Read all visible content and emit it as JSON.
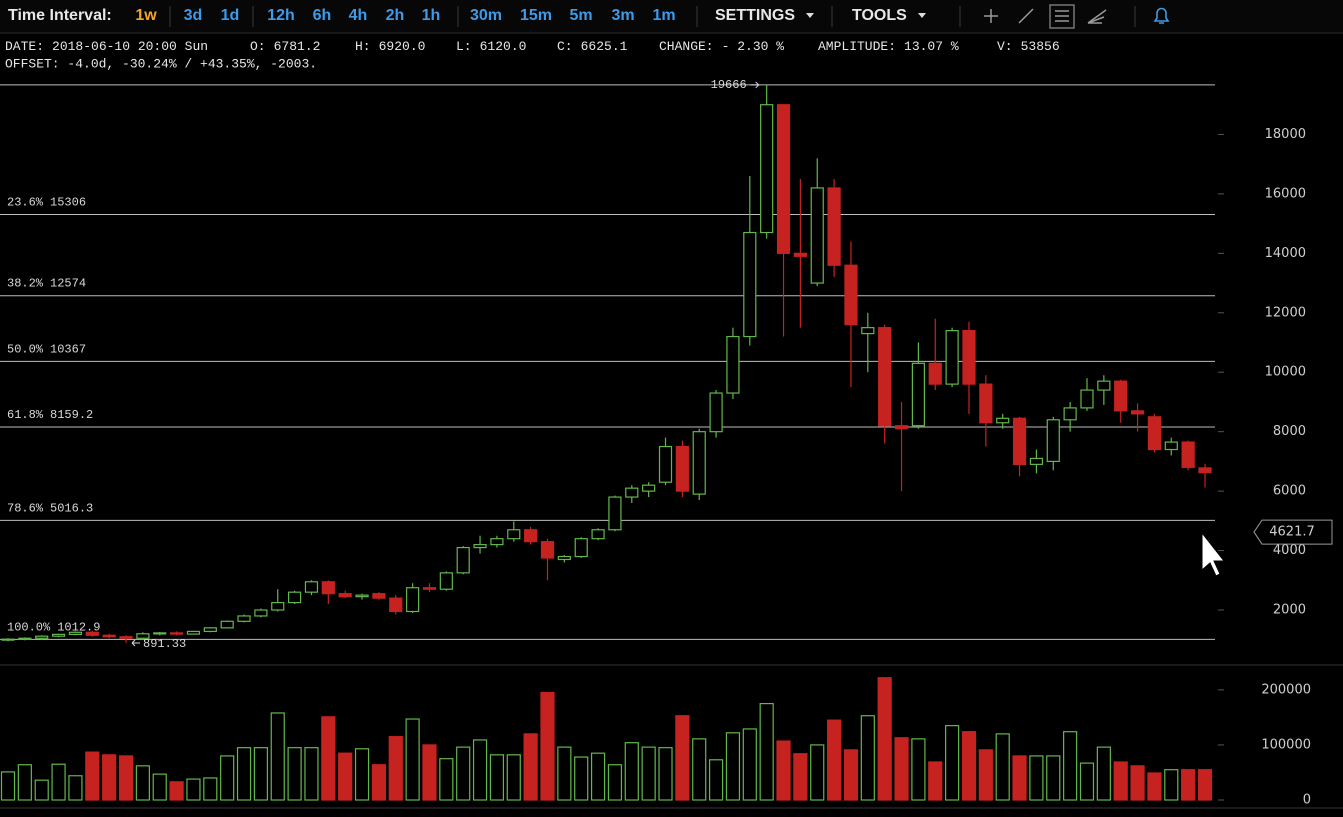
{
  "toolbar": {
    "label": "Time Interval:",
    "intervals": [
      "1w",
      "3d",
      "1d",
      "12h",
      "6h",
      "4h",
      "2h",
      "1h",
      "30m",
      "15m",
      "5m",
      "3m",
      "1m"
    ],
    "menus": [
      "SETTINGS",
      "TOOLS"
    ]
  },
  "info": [
    {
      "label": "DATE:",
      "value": "2018-06-10 20:00 Sun"
    },
    {
      "label": "O:",
      "value": "6781.2"
    },
    {
      "label": "H:",
      "value": "6920.0"
    },
    {
      "label": "L:",
      "value": "6120.0"
    },
    {
      "label": "C:",
      "value": "6625.1"
    },
    {
      "label": "CHANGE:",
      "value": "- 2.30 %"
    },
    {
      "label": "AMPLITUDE:",
      "value": "13.07 %"
    },
    {
      "label": "V:",
      "value": "53856"
    }
  ],
  "offset": "OFFSET: -4.0d, -30.24% / +43.35%, -2003.",
  "chart_data": [
    {
      "type": "candlestick",
      "open": [
        1000,
        1020,
        1050,
        1120,
        1180,
        1250,
        1150,
        1100,
        1050,
        1200,
        1230,
        1190,
        1280,
        1400,
        1620,
        1800,
        2000,
        2250,
        2600,
        2950,
        2550,
        2450,
        2550,
        2400,
        1950,
        2750,
        2700,
        3250,
        4100,
        4200,
        4400,
        4700,
        4300,
        3700,
        3800,
        4400,
        4700,
        5800,
        6000,
        6300,
        7500,
        5900,
        8000,
        9300,
        11200,
        14700,
        19000,
        14000,
        13000,
        16200,
        13600,
        11300,
        11500,
        8200,
        8200,
        10300,
        9600,
        11400,
        9600,
        8300,
        8450,
        6900,
        7000,
        8400,
        8800,
        9400,
        9700,
        8700,
        8500,
        7400,
        7650,
        6781.2
      ],
      "high": [
        1050,
        1080,
        1150,
        1200,
        1280,
        1300,
        1200,
        1150,
        1250,
        1260,
        1280,
        1300,
        1420,
        1650,
        1850,
        2050,
        2700,
        2650,
        3000,
        3000,
        2650,
        2550,
        2600,
        2500,
        2900,
        2900,
        3300,
        4150,
        4500,
        4500,
        4980,
        4800,
        4400,
        3850,
        4450,
        4750,
        5850,
        6200,
        6300,
        7800,
        7700,
        8100,
        9400,
        11500,
        16600,
        19666,
        19000,
        16500,
        17200,
        16500,
        14400,
        12000,
        11600,
        9000,
        11000,
        11800,
        11500,
        11700,
        9900,
        8600,
        8500,
        7400,
        8500,
        9000,
        9800,
        9900,
        9750,
        8950,
        8600,
        7800,
        7700,
        6920
      ],
      "low": [
        950,
        980,
        1000,
        1080,
        1150,
        1100,
        1050,
        891.33,
        1000,
        1150,
        1150,
        1180,
        1250,
        1380,
        1580,
        1750,
        1950,
        2200,
        2500,
        2200,
        2400,
        2350,
        2350,
        1850,
        1900,
        2600,
        2650,
        3200,
        3900,
        4100,
        4300,
        4200,
        3000,
        3600,
        3750,
        4350,
        4650,
        5600,
        5800,
        6200,
        5800,
        5700,
        7800,
        9100,
        10900,
        14500,
        11200,
        11500,
        12900,
        13200,
        9500,
        10000,
        7600,
        6000,
        8100,
        9400,
        9500,
        8600,
        7500,
        8100,
        6500,
        6600,
        6700,
        8000,
        8700,
        8900,
        8300,
        8000,
        7300,
        7200,
        6700,
        6120
      ],
      "close": [
        1020,
        1050,
        1120,
        1180,
        1250,
        1150,
        1100,
        1050,
        1200,
        1230,
        1190,
        1280,
        1400,
        1620,
        1800,
        2000,
        2250,
        2600,
        2950,
        2550,
        2450,
        2500,
        2400,
        1950,
        2750,
        2700,
        3250,
        4100,
        4200,
        4400,
        4700,
        4300,
        3750,
        3800,
        4400,
        4700,
        5800,
        6100,
        6200,
        7500,
        6000,
        8000,
        9300,
        11200,
        14700,
        19000,
        14000,
        13900,
        16200,
        13600,
        11600,
        11500,
        8200,
        8100,
        10300,
        9600,
        11400,
        9600,
        8300,
        8450,
        6900,
        7100,
        8400,
        8800,
        9400,
        9700,
        8700,
        8600,
        7400,
        7650,
        6800,
        6625.1
      ],
      "up_color": "#62b84a",
      "down_color": "#c62320",
      "ylim": [
        150,
        20000
      ],
      "yticks": [
        2000,
        4000,
        6000,
        8000,
        10000,
        12000,
        14000,
        16000,
        18000
      ],
      "fib_levels": [
        {
          "label": "23.6%",
          "value": 15306
        },
        {
          "label": "38.2%",
          "value": 12574
        },
        {
          "label": "50.0%",
          "value": 10367
        },
        {
          "label": "61.8%",
          "value": 8159.2
        },
        {
          "label": "78.6%",
          "value": 5016.3
        },
        {
          "label": "100.0%",
          "value": 1012.9
        }
      ],
      "high_label": 19666,
      "low_label": 891.33,
      "cursor_price": 4621.7
    },
    {
      "type": "volume",
      "values": [
        51000,
        64000,
        36000,
        65000,
        44000,
        87000,
        82000,
        80000,
        62000,
        47000,
        33000,
        38000,
        40000,
        80000,
        95000,
        95000,
        158000,
        95000,
        95000,
        151000,
        85000,
        93000,
        64000,
        115000,
        147000,
        100000,
        75000,
        96000,
        109000,
        82000,
        82000,
        120000,
        195000,
        96000,
        78000,
        85000,
        64000,
        104000,
        96000,
        95000,
        153000,
        111000,
        73000,
        122000,
        129000,
        175000,
        107000,
        84000,
        100000,
        145000,
        91000,
        153000,
        222000,
        113000,
        111000,
        69000,
        135000,
        124000,
        91000,
        120000,
        80000,
        80000,
        80000,
        124000,
        67000,
        96000,
        69000,
        62000,
        49000,
        55000,
        55000,
        55000
      ],
      "ylim": [
        0,
        236000
      ],
      "yticks": [
        0,
        100000,
        200000
      ]
    }
  ]
}
